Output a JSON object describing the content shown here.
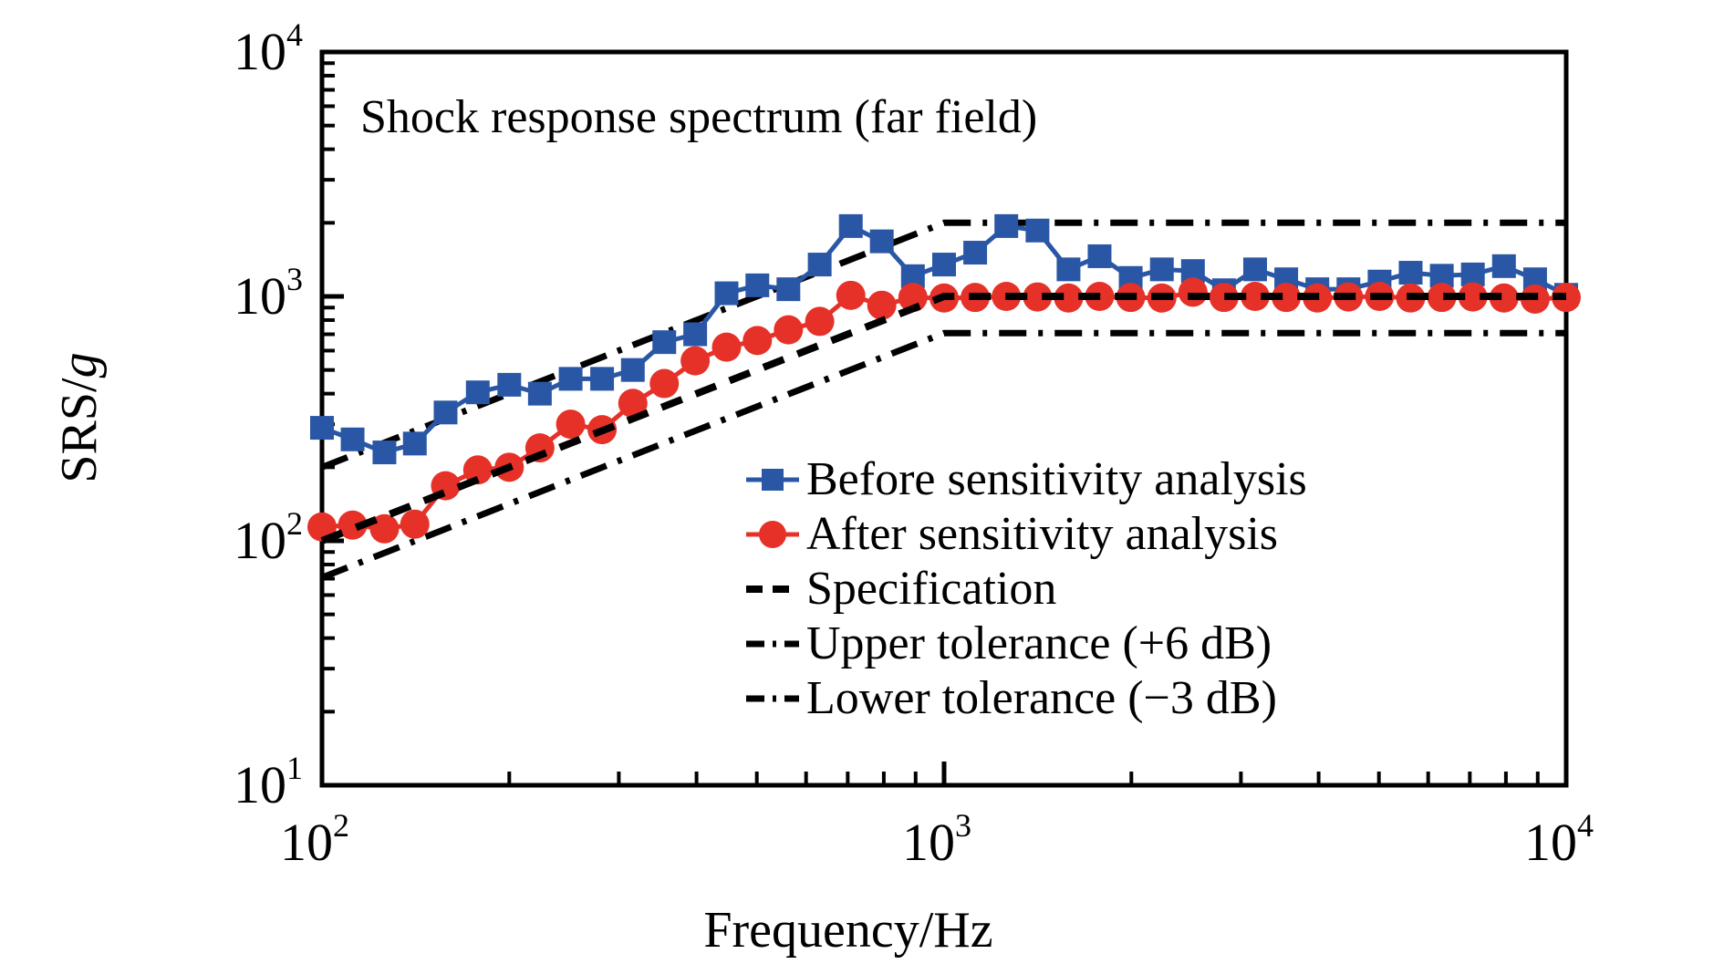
{
  "page": {
    "background": "#ffffff"
  },
  "chart_data": {
    "type": "line",
    "title": "Shock response spectrum (far field)",
    "xlabel": "Frequency/Hz",
    "ylabel": "SRS/g",
    "x_scale": "log",
    "y_scale": "log",
    "xlim": [
      100,
      10000
    ],
    "ylim": [
      10,
      10000
    ],
    "x_ticks_exponents": [
      2,
      3,
      4
    ],
    "y_ticks_exponents": [
      1,
      2,
      3,
      4
    ],
    "grid": false,
    "legend_position": "inside-lower-right",
    "colors": {
      "before": "#2a57a5",
      "after": "#e63128",
      "reference": "#000000"
    },
    "x": [
      100,
      112,
      126,
      141,
      158,
      178,
      200,
      224,
      251,
      282,
      316,
      355,
      398,
      447,
      501,
      562,
      631,
      708,
      794,
      891,
      1000,
      1122,
      1259,
      1413,
      1585,
      1778,
      1995,
      2239,
      2512,
      2818,
      3162,
      3548,
      3981,
      4467,
      5012,
      5623,
      6310,
      7079,
      7943,
      8913,
      10000
    ],
    "series": [
      {
        "name": "Before sensitivity analysis",
        "kind": "line-markers",
        "marker": "square",
        "color": "#2a57a5",
        "y": [
          290,
          260,
          230,
          250,
          335,
          405,
          435,
          400,
          460,
          460,
          500,
          650,
          700,
          1030,
          1110,
          1070,
          1350,
          1940,
          1680,
          1210,
          1350,
          1510,
          1940,
          1860,
          1290,
          1460,
          1190,
          1290,
          1270,
          1060,
          1290,
          1175,
          1070,
          1070,
          1150,
          1250,
          1215,
          1230,
          1330,
          1175,
          1015
        ]
      },
      {
        "name": "After sensitivity analysis",
        "kind": "line-markers",
        "marker": "circle",
        "color": "#e63128",
        "y": [
          114,
          116,
          112,
          117,
          168,
          195,
          200,
          240,
          300,
          285,
          365,
          440,
          545,
          620,
          660,
          730,
          790,
          1010,
          920,
          990,
          985,
          990,
          1000,
          995,
          985,
          1000,
          990,
          985,
          1040,
          990,
          1000,
          990,
          985,
          995,
          1000,
          985,
          990,
          995,
          985,
          975,
          990
        ]
      },
      {
        "name": "Specification",
        "kind": "reference",
        "style": "dashed",
        "color": "#000000",
        "ref_x": [
          100,
          1000,
          10000
        ],
        "ref_y": [
          100,
          1000,
          1000
        ]
      },
      {
        "name": "Upper tolerance (+6 dB)",
        "kind": "reference",
        "style": "dashdot",
        "color": "#000000",
        "ref_x": [
          100,
          1000,
          10000
        ],
        "ref_y": [
          200,
          2000,
          2000
        ]
      },
      {
        "name": "Lower tolerance (−3 dB)",
        "kind": "reference",
        "style": "dashdot",
        "color": "#000000",
        "ref_x": [
          100,
          1000,
          10000
        ],
        "ref_y": [
          70.8,
          708,
          708
        ]
      }
    ]
  }
}
